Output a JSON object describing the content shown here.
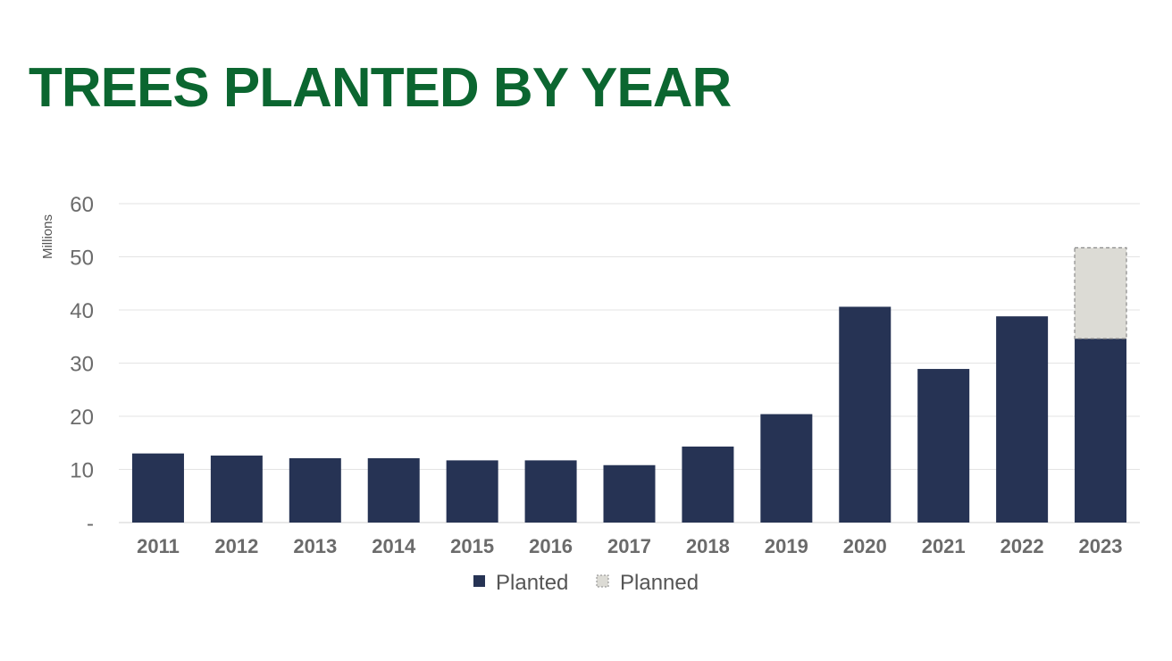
{
  "colors": {
    "title": "#0b6630",
    "planted": "#263354",
    "planned": "#dcdbd5",
    "planned_border": "#8a8a8a",
    "grid": "#e3e3e3",
    "axis_text": "#6b6b6b"
  },
  "chart_data": {
    "type": "bar",
    "title": "TREES PLANTED BY YEAR",
    "xlabel": "",
    "ylabel": "Millions",
    "ylim": [
      0,
      60
    ],
    "yticks": [
      {
        "value": 0,
        "label": "-"
      },
      {
        "value": 10,
        "label": "10"
      },
      {
        "value": 20,
        "label": "20"
      },
      {
        "value": 30,
        "label": "30"
      },
      {
        "value": 40,
        "label": "40"
      },
      {
        "value": 50,
        "label": "50"
      },
      {
        "value": 60,
        "label": "60"
      }
    ],
    "grid": true,
    "stacked": true,
    "legend_position": "bottom",
    "categories": [
      "2011",
      "2012",
      "2013",
      "2014",
      "2015",
      "2016",
      "2017",
      "2018",
      "2019",
      "2020",
      "2021",
      "2022",
      "2023"
    ],
    "series": [
      {
        "name": "Planted",
        "values": [
          13,
          12.6,
          12.1,
          12.1,
          11.7,
          11.7,
          10.8,
          14.3,
          20.4,
          40.6,
          28.9,
          38.8,
          34.6
        ]
      },
      {
        "name": "Planned",
        "values": [
          0,
          0,
          0,
          0,
          0,
          0,
          0,
          0,
          0,
          0,
          0,
          0,
          17.1
        ]
      }
    ]
  }
}
